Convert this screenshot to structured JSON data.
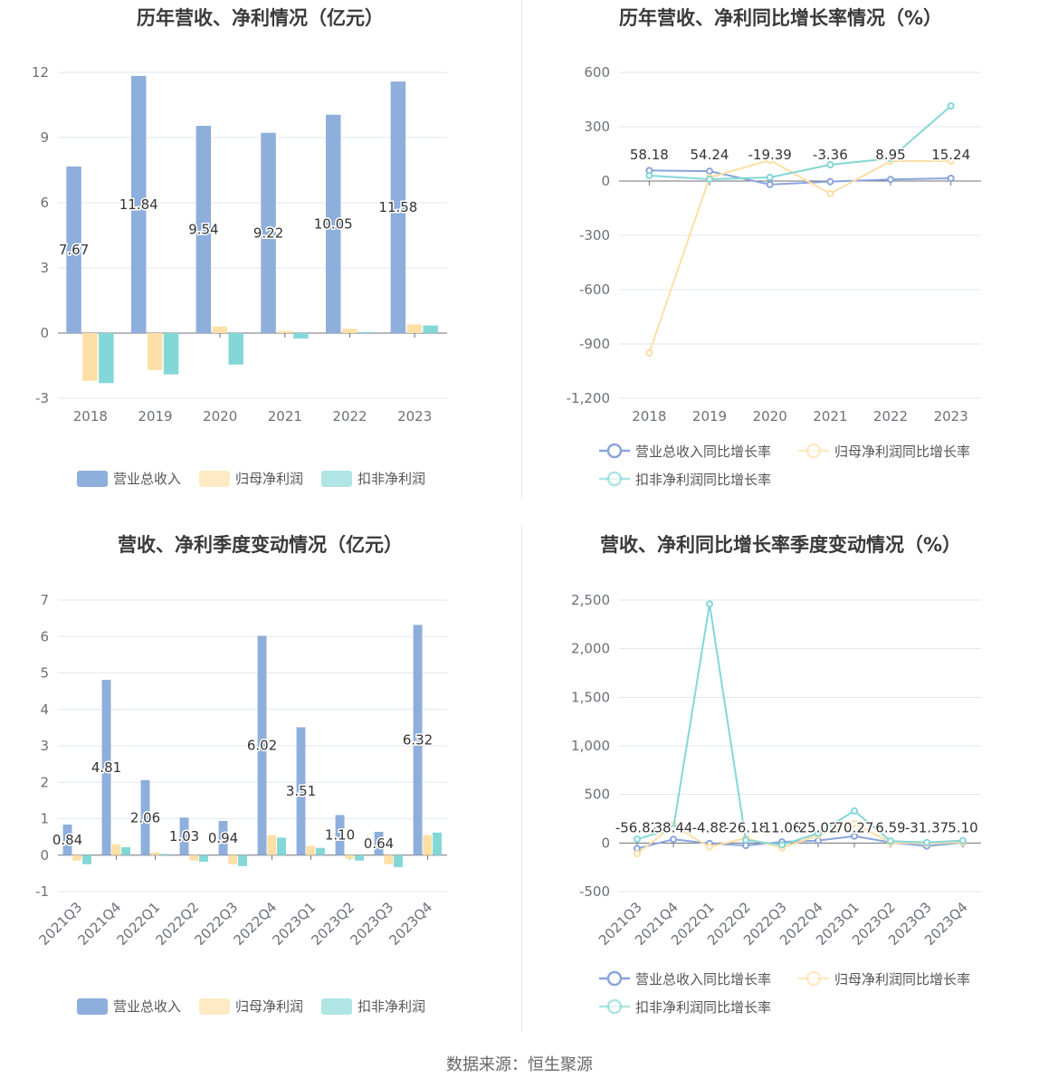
{
  "footer": "数据来源：恒生聚源",
  "chart_data": [
    {
      "type": "bar",
      "title": "历年营收、净利情况（亿元）",
      "categories": [
        "2018",
        "2019",
        "2020",
        "2021",
        "2022",
        "2023"
      ],
      "ylim": [
        -3,
        12
      ],
      "yticks": [
        -3,
        0,
        3,
        6,
        9,
        12
      ],
      "legend_position": "bottom",
      "series": [
        {
          "name": "营业总收入",
          "color": "#8eaedb",
          "values": [
            7.67,
            11.84,
            9.54,
            9.22,
            10.05,
            11.58
          ],
          "labels": [
            "7.67",
            "11.84",
            "9.54",
            "9.22",
            "10.05",
            "11.58"
          ]
        },
        {
          "name": "归母净利润",
          "color": "#fedfa6",
          "values": [
            -2.2,
            -1.7,
            0.3,
            0.1,
            0.2,
            0.4
          ]
        },
        {
          "name": "扣非净利润",
          "color": "#84d7d7",
          "values": [
            -2.3,
            -1.9,
            -1.45,
            -0.25,
            0.05,
            0.35
          ]
        }
      ]
    },
    {
      "type": "line",
      "title": "历年营收、净利同比增长率情况（%）",
      "categories": [
        "2018",
        "2019",
        "2020",
        "2021",
        "2022",
        "2023"
      ],
      "ylim": [
        -1200,
        600
      ],
      "yticks": [
        -1200,
        -900,
        -600,
        -300,
        0,
        300,
        600
      ],
      "legend_position": "bottom",
      "series": [
        {
          "name": "营业总收入同比增长率",
          "color": "#8aa4dc",
          "values": [
            58.18,
            54.24,
            -19.39,
            -3.36,
            8.95,
            15.24
          ],
          "labels": [
            "58.18",
            "54.24",
            "-19.39",
            "-3.36",
            "8.95",
            "15.24"
          ]
        },
        {
          "name": "归母净利润同比增长率",
          "color": "#fedfa6",
          "values": [
            -950,
            20,
            115,
            -70,
            110,
            110
          ]
        },
        {
          "name": "扣非净利润同比增长率",
          "color": "#84d7d7",
          "values": [
            30,
            10,
            20,
            90,
            125,
            415
          ]
        }
      ]
    },
    {
      "type": "bar",
      "title": "营收、净利季度变动情况（亿元）",
      "categories": [
        "2021Q3",
        "2021Q4",
        "2022Q1",
        "2022Q2",
        "2022Q3",
        "2022Q4",
        "2023Q1",
        "2023Q2",
        "2023Q3",
        "2023Q4"
      ],
      "ylim": [
        -1,
        7
      ],
      "yticks": [
        -1,
        0,
        1,
        2,
        3,
        4,
        5,
        6,
        7
      ],
      "legend_position": "bottom",
      "series": [
        {
          "name": "营业总收入",
          "color": "#8eaedb",
          "values": [
            0.84,
            4.81,
            2.06,
            1.03,
            0.94,
            6.02,
            3.51,
            1.1,
            0.64,
            6.32
          ],
          "labels": [
            "0.84",
            "4.81",
            "2.06",
            "1.03",
            "0.94",
            "6.02",
            "3.51",
            "1.10",
            "0.64",
            "6.32"
          ]
        },
        {
          "name": "归母净利润",
          "color": "#fedfa6",
          "values": [
            -0.15,
            0.3,
            0.08,
            -0.15,
            -0.25,
            0.55,
            0.25,
            -0.1,
            -0.25,
            0.55
          ]
        },
        {
          "name": "扣非净利润",
          "color": "#84d7d7",
          "values": [
            -0.25,
            0.22,
            0.03,
            -0.18,
            -0.3,
            0.48,
            0.2,
            -0.15,
            -0.33,
            0.62
          ]
        }
      ]
    },
    {
      "type": "line",
      "title": "营收、净利同比增长率季度变动情况（%）",
      "categories": [
        "2021Q3",
        "2021Q4",
        "2022Q1",
        "2022Q2",
        "2022Q3",
        "2022Q4",
        "2023Q1",
        "2023Q2",
        "2023Q3",
        "2023Q4"
      ],
      "ylim": [
        -500,
        2500
      ],
      "yticks": [
        -500,
        0,
        500,
        1000,
        1500,
        2000,
        2500
      ],
      "legend_position": "bottom",
      "series": [
        {
          "name": "营业总收入同比增长率",
          "color": "#8aa4dc",
          "values": [
            -56.82,
            38.44,
            -4.88,
            -26.18,
            11.06,
            25.02,
            70.27,
            6.59,
            -31.37,
            5.1
          ],
          "labels": [
            "-56.82",
            "38.44",
            "-4.88",
            "-26.18",
            "11.06",
            "25.02",
            "70.27",
            "6.59",
            "-31.37",
            "5.10"
          ]
        },
        {
          "name": "归母净利润同比增长率",
          "color": "#fedfa6",
          "values": [
            -110,
            180,
            -40,
            50,
            -50,
            80,
            200,
            5,
            -5,
            10
          ]
        },
        {
          "name": "扣非净利润同比增长率",
          "color": "#84d7d7",
          "values": [
            40,
            150,
            2460,
            30,
            -20,
            100,
            330,
            20,
            5,
            25
          ]
        }
      ]
    }
  ]
}
